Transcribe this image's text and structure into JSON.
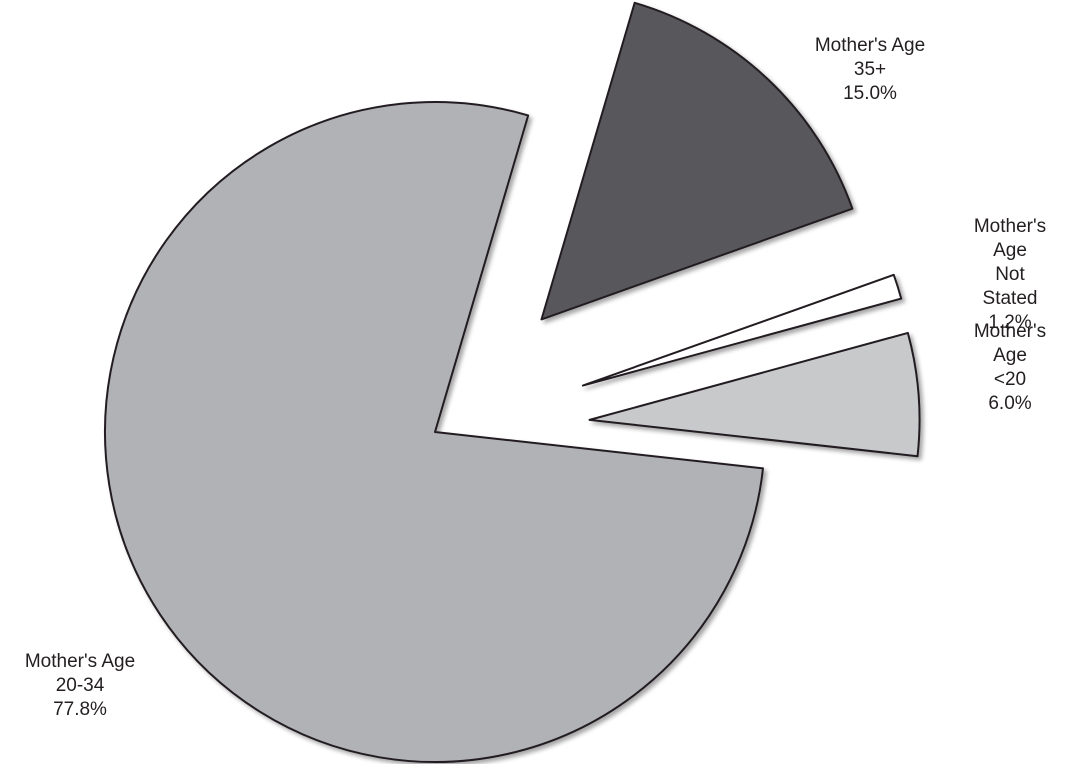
{
  "chart_data": {
    "type": "pie",
    "categories": [
      "Mother's Age\n35+",
      "Mother's Age\nNot Stated",
      "Mother's Age\n<20",
      "Mother's Age\n20-34"
    ],
    "values": [
      15.0,
      1.2,
      6.0,
      77.8
    ],
    "value_labels": [
      "15.0%",
      "1.2%",
      "6.0%",
      "77.8%"
    ],
    "colors": [
      "#58595b",
      "#ffffff",
      "#c8c9cb",
      "#b1b2b5"
    ]
  }
}
